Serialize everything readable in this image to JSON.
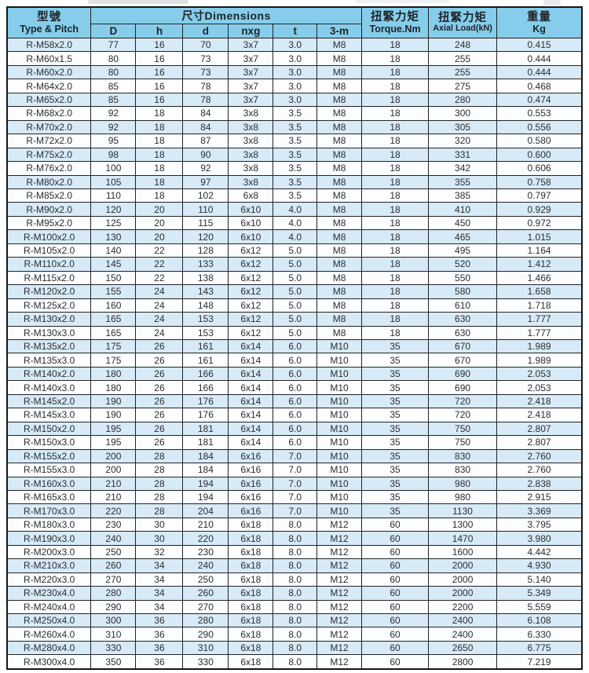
{
  "colors": {
    "header_bg": "#85cdeb",
    "stripe_row_bg": "#d7eaf7",
    "plain_row_bg": "#fcfdfe",
    "grid_border": "#232323",
    "text": "#2b2e30"
  },
  "table": {
    "header": {
      "type_pitch_zh": "型號",
      "type_pitch_en": "Type & Pitch",
      "dimensions_label": "尺寸Dimensions",
      "dim_cols": [
        "D",
        "h",
        "d",
        "nxg",
        "t",
        "3-m"
      ],
      "torque_zh": "扭緊力矩",
      "torque_en": "Torque.Nm",
      "axial_zh": "扭緊力矩",
      "axial_en": "Axial Load(kN)",
      "weight_zh": "重量",
      "weight_en": "Kg"
    },
    "rows": [
      [
        "R-M58x2.0",
        "77",
        "16",
        "70",
        "3x7",
        "3.0",
        "M8",
        "18",
        "248",
        "0.415"
      ],
      [
        "R-M60x1.5",
        "80",
        "16",
        "73",
        "3x7",
        "3.0",
        "M8",
        "18",
        "255",
        "0.444"
      ],
      [
        "R-M60x2.0",
        "80",
        "16",
        "73",
        "3x7",
        "3.0",
        "M8",
        "18",
        "255",
        "0.444"
      ],
      [
        "R-M64x2.0",
        "85",
        "16",
        "78",
        "3x7",
        "3.0",
        "M8",
        "18",
        "275",
        "0.468"
      ],
      [
        "R-M65x2.0",
        "85",
        "16",
        "78",
        "3x7",
        "3.0",
        "M8",
        "18",
        "280",
        "0.474"
      ],
      [
        "R-M68x2.0",
        "92",
        "18",
        "84",
        "3x8",
        "3.5",
        "M8",
        "18",
        "300",
        "0.553"
      ],
      [
        "R-M70x2.0",
        "92",
        "18",
        "84",
        "3x8",
        "3.5",
        "M8",
        "18",
        "305",
        "0.556"
      ],
      [
        "R-M72x2.0",
        "95",
        "18",
        "87",
        "3x8",
        "3.5",
        "M8",
        "18",
        "320",
        "0.580"
      ],
      [
        "R-M75x2.0",
        "98",
        "18",
        "90",
        "3x8",
        "3.5",
        "M8",
        "18",
        "331",
        "0.600"
      ],
      [
        "R-M76x2.0",
        "100",
        "18",
        "92",
        "3x8",
        "3.5",
        "M8",
        "18",
        "342",
        "0.606"
      ],
      [
        "R-M80x2.0",
        "105",
        "18",
        "97",
        "3x8",
        "3.5",
        "M8",
        "18",
        "355",
        "0.758"
      ],
      [
        "R-M85x2.0",
        "110",
        "18",
        "102",
        "6x8",
        "3.5",
        "M8",
        "18",
        "385",
        "0.797"
      ],
      [
        "R-M90x2.0",
        "120",
        "20",
        "110",
        "6x10",
        "4.0",
        "M8",
        "18",
        "410",
        "0.929"
      ],
      [
        "R-M95x2.0",
        "125",
        "20",
        "115",
        "6x10",
        "4.0",
        "M8",
        "18",
        "450",
        "0.972"
      ],
      [
        "R-M100x2.0",
        "130",
        "20",
        "120",
        "6x10",
        "4.0",
        "M8",
        "18",
        "465",
        "1.015"
      ],
      [
        "R-M105x2.0",
        "140",
        "22",
        "128",
        "6x12",
        "5.0",
        "M8",
        "18",
        "495",
        "1.164"
      ],
      [
        "R-M110x2.0",
        "145",
        "22",
        "133",
        "6x12",
        "5.0",
        "M8",
        "18",
        "520",
        "1.412"
      ],
      [
        "R-M115x2.0",
        "150",
        "22",
        "138",
        "6x12",
        "5.0",
        "M8",
        "18",
        "550",
        "1.466"
      ],
      [
        "R-M120x2.0",
        "155",
        "24",
        "143",
        "6x12",
        "5.0",
        "M8",
        "18",
        "580",
        "1.658"
      ],
      [
        "R-M125x2.0",
        "160",
        "24",
        "148",
        "6x12",
        "5.0",
        "M8",
        "18",
        "610",
        "1.718"
      ],
      [
        "R-M130x2.0",
        "165",
        "24",
        "153",
        "6x12",
        "5.0",
        "M8",
        "18",
        "630",
        "1.777"
      ],
      [
        "R-M130x3.0",
        "165",
        "24",
        "153",
        "6x12",
        "5.0",
        "M8",
        "18",
        "630",
        "1.777"
      ],
      [
        "R-M135x2.0",
        "175",
        "26",
        "161",
        "6x14",
        "6.0",
        "M10",
        "35",
        "670",
        "1.989"
      ],
      [
        "R-M135x3.0",
        "175",
        "26",
        "161",
        "6x14",
        "6.0",
        "M10",
        "35",
        "670",
        "1.989"
      ],
      [
        "R-M140x2.0",
        "180",
        "26",
        "166",
        "6x14",
        "6.0",
        "M10",
        "35",
        "690",
        "2.053"
      ],
      [
        "R-M140x3.0",
        "180",
        "26",
        "166",
        "6x14",
        "6.0",
        "M10",
        "35",
        "690",
        "2.053"
      ],
      [
        "R-M145x2.0",
        "190",
        "26",
        "176",
        "6x14",
        "6.0",
        "M10",
        "35",
        "720",
        "2.418"
      ],
      [
        "R-M145x3.0",
        "190",
        "26",
        "176",
        "6x14",
        "6.0",
        "M10",
        "35",
        "720",
        "2.418"
      ],
      [
        "R-M150x2.0",
        "195",
        "26",
        "181",
        "6x14",
        "6.0",
        "M10",
        "35",
        "750",
        "2.807"
      ],
      [
        "R-M150x3.0",
        "195",
        "26",
        "181",
        "6x14",
        "6.0",
        "M10",
        "35",
        "750",
        "2.807"
      ],
      [
        "R-M155x2.0",
        "200",
        "28",
        "184",
        "6x16",
        "7.0",
        "M10",
        "35",
        "830",
        "2.760"
      ],
      [
        "R-M155x3.0",
        "200",
        "28",
        "184",
        "6x16",
        "7.0",
        "M10",
        "35",
        "830",
        "2.760"
      ],
      [
        "R-M160x3.0",
        "210",
        "28",
        "194",
        "6x16",
        "7.0",
        "M10",
        "35",
        "980",
        "2.838"
      ],
      [
        "R-M165x3.0",
        "210",
        "28",
        "194",
        "6x16",
        "7.0",
        "M10",
        "35",
        "980",
        "2.915"
      ],
      [
        "R-M170x3.0",
        "220",
        "28",
        "204",
        "6x16",
        "7.0",
        "M10",
        "35",
        "1130",
        "3.369"
      ],
      [
        "R-M180x3.0",
        "230",
        "30",
        "210",
        "6x18",
        "8.0",
        "M12",
        "60",
        "1300",
        "3.795"
      ],
      [
        "R-M190x3.0",
        "240",
        "30",
        "220",
        "6x18",
        "8.0",
        "M12",
        "60",
        "1470",
        "3.980"
      ],
      [
        "R-M200x3.0",
        "250",
        "32",
        "230",
        "6x18",
        "8.0",
        "M12",
        "60",
        "1600",
        "4.442"
      ],
      [
        "R-M210x3.0",
        "260",
        "34",
        "240",
        "6x18",
        "8.0",
        "M12",
        "60",
        "2000",
        "4.930"
      ],
      [
        "R-M220x3.0",
        "270",
        "34",
        "250",
        "6x18",
        "8.0",
        "M12",
        "60",
        "2000",
        "5.140"
      ],
      [
        "R-M230x4.0",
        "280",
        "34",
        "260",
        "6x18",
        "8.0",
        "M12",
        "60",
        "2000",
        "5.349"
      ],
      [
        "R-M240x4.0",
        "290",
        "34",
        "270",
        "6x18",
        "8.0",
        "M12",
        "60",
        "2200",
        "5.559"
      ],
      [
        "R-M250x4.0",
        "300",
        "36",
        "280",
        "6x18",
        "8.0",
        "M12",
        "60",
        "2400",
        "6.108"
      ],
      [
        "R-M260x4.0",
        "310",
        "36",
        "290",
        "6x18",
        "8.0",
        "M12",
        "60",
        "2400",
        "6.330"
      ],
      [
        "R-M280x4.0",
        "330",
        "36",
        "310",
        "6x18",
        "8.0",
        "M12",
        "60",
        "2650",
        "6.775"
      ],
      [
        "R-M300x4.0",
        "350",
        "36",
        "330",
        "6x18",
        "8.0",
        "M12",
        "60",
        "2800",
        "7.219"
      ]
    ]
  }
}
